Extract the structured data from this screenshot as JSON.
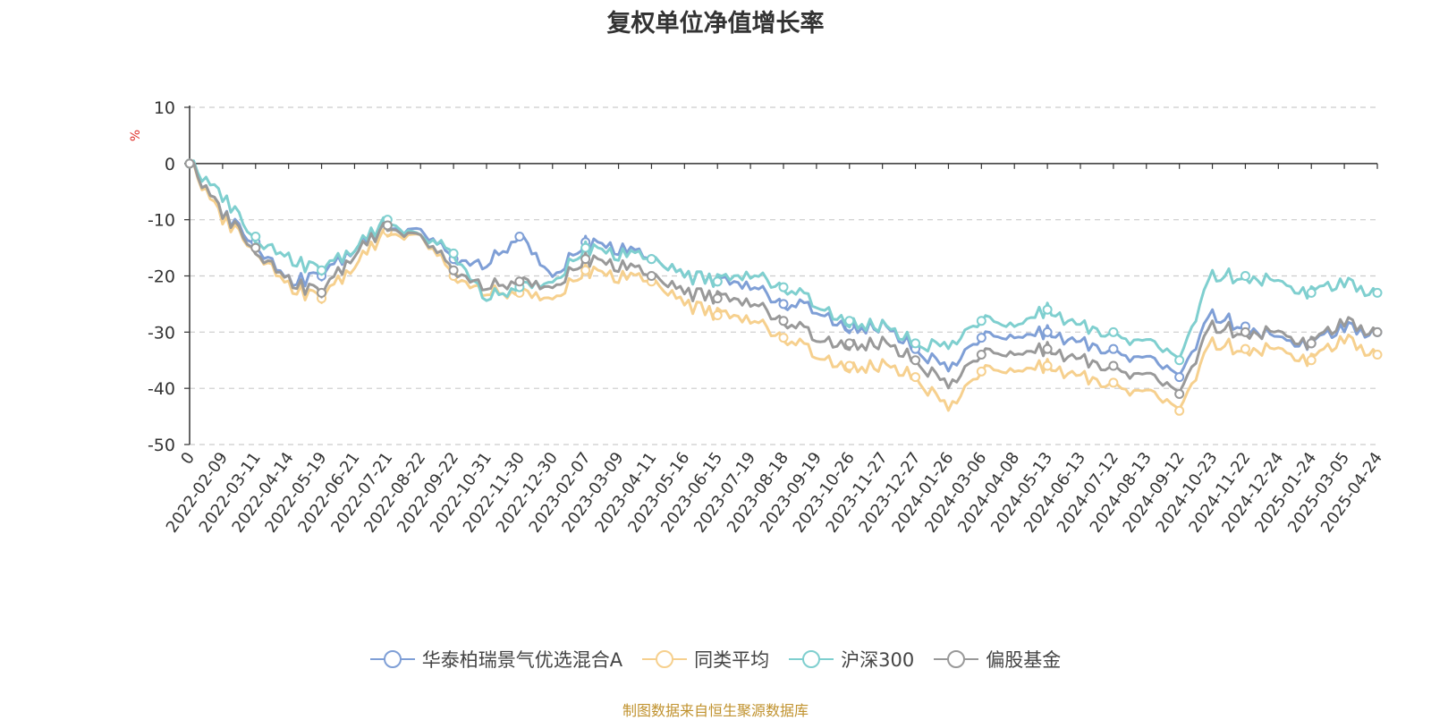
{
  "chart_data": {
    "type": "line",
    "title": "复权单位净值增长率",
    "ylabel": "%",
    "xlabel": "",
    "ylim": [
      -50,
      10
    ],
    "yticks": [
      10,
      0,
      -10,
      -20,
      -30,
      -40,
      -50
    ],
    "grid": true,
    "legend_position": "bottom",
    "x": [
      "0",
      "2022-02-09",
      "2022-03-11",
      "2022-04-14",
      "2022-05-19",
      "2022-06-21",
      "2022-07-21",
      "2022-08-22",
      "2022-09-22",
      "2022-10-31",
      "2022-11-30",
      "2022-12-30",
      "2023-02-07",
      "2023-03-09",
      "2023-04-11",
      "2023-05-16",
      "2023-06-15",
      "2023-07-19",
      "2023-08-18",
      "2023-09-19",
      "2023-10-26",
      "2023-11-27",
      "2023-12-27",
      "2024-01-26",
      "2024-03-06",
      "2024-04-08",
      "2024-05-13",
      "2024-06-13",
      "2024-07-12",
      "2024-08-13",
      "2024-09-12",
      "2024-10-23",
      "2024-11-22",
      "2024-12-24",
      "2025-01-24",
      "2025-03-05",
      "2025-04-24"
    ],
    "series": [
      {
        "name": "华泰柏瑞景气优选混合A",
        "color": "#7f9fd6",
        "values": [
          0,
          -9,
          -14,
          -21,
          -20,
          -15,
          -11,
          -12,
          -17,
          -18,
          -13,
          -20,
          -14,
          -15,
          -17,
          -20,
          -21,
          -22,
          -25,
          -26,
          -29,
          -29,
          -33,
          -37,
          -31,
          -31,
          -30,
          -32,
          -33,
          -35,
          -38,
          -27,
          -29,
          -31,
          -32,
          -29,
          -30
        ]
      },
      {
        "name": "同类平均",
        "color": "#f6d08e",
        "values": [
          0,
          -10,
          -15,
          -22,
          -24,
          -18,
          -12,
          -13,
          -20,
          -23,
          -23,
          -24,
          -19,
          -20,
          -21,
          -25,
          -27,
          -28,
          -31,
          -34,
          -36,
          -36,
          -38,
          -44,
          -37,
          -37,
          -36,
          -38,
          -39,
          -41,
          -44,
          -32,
          -33,
          -33,
          -35,
          -31,
          -34
        ]
      },
      {
        "name": "沪深300",
        "color": "#7fcfcf",
        "values": [
          0,
          -6,
          -13,
          -17,
          -19,
          -15,
          -10,
          -13,
          -16,
          -24,
          -22,
          -21,
          -15,
          -16,
          -17,
          -20,
          -21,
          -20,
          -22,
          -25,
          -28,
          -29,
          -32,
          -33,
          -28,
          -29,
          -26,
          -29,
          -30,
          -32,
          -35,
          -20,
          -20,
          -21,
          -23,
          -21,
          -23
        ]
      },
      {
        "name": "偏股基金",
        "color": "#999999",
        "values": [
          0,
          -9,
          -15,
          -21,
          -23,
          -16,
          -11,
          -13,
          -19,
          -22,
          -21,
          -22,
          -17,
          -18,
          -20,
          -23,
          -24,
          -25,
          -28,
          -31,
          -32,
          -32,
          -35,
          -40,
          -34,
          -34,
          -33,
          -35,
          -36,
          -38,
          -41,
          -29,
          -30,
          -30,
          -32,
          -28,
          -30
        ]
      }
    ]
  },
  "source_note": "制图数据来自恒生聚源数据库"
}
